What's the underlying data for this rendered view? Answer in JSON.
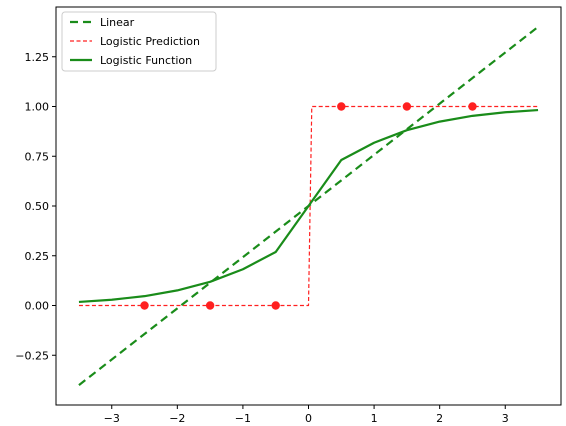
{
  "chart_data": {
    "type": "line",
    "title": "",
    "xlabel": "",
    "ylabel": "",
    "xlim": [
      -3.85,
      3.85
    ],
    "ylim": [
      -0.5,
      1.5
    ],
    "xticks": [
      -3,
      -2,
      -1,
      0,
      1,
      2,
      3
    ],
    "xtick_labels": [
      "−3",
      "−2",
      "−1",
      "0",
      "1",
      "2",
      "3"
    ],
    "yticks": [
      -0.25,
      0.0,
      0.25,
      0.5,
      0.75,
      1.0,
      1.25
    ],
    "ytick_labels": [
      "−0.25",
      "0.00",
      "0.25",
      "0.50",
      "0.75",
      "1.00",
      "1.25"
    ],
    "grid": false,
    "legend_position": "top-left",
    "colors": {
      "green": "#1a8c1a",
      "red": "#ff2020"
    },
    "series": [
      {
        "name": "Linear",
        "style": "dashed",
        "color": "#1a8c1a",
        "x": [
          -3.5,
          3.5
        ],
        "y": [
          -0.4,
          1.4
        ]
      },
      {
        "name": "Logistic Prediction",
        "style": "dashed-thin",
        "color": "#ff2020",
        "x": [
          -3.5,
          0,
          0.05,
          3.5
        ],
        "y": [
          0,
          0,
          1,
          1
        ]
      },
      {
        "name": "Logistic Function",
        "style": "solid",
        "color": "#1a8c1a",
        "x": [
          -3.5,
          -3.0,
          -2.5,
          -2.0,
          -1.5,
          -1.0,
          -0.5,
          0.0,
          0.5,
          1.0,
          1.5,
          2.0,
          2.5,
          3.0,
          3.5
        ],
        "y": [
          0.018,
          0.029,
          0.047,
          0.076,
          0.119,
          0.182,
          0.269,
          0.5,
          0.731,
          0.818,
          0.881,
          0.924,
          0.953,
          0.971,
          0.982
        ]
      }
    ],
    "points": {
      "color": "#ff2020",
      "x": [
        -2.5,
        -1.5,
        -0.5,
        0.5,
        1.5,
        2.5
      ],
      "y": [
        0,
        0,
        0,
        1,
        1,
        1
      ]
    }
  }
}
